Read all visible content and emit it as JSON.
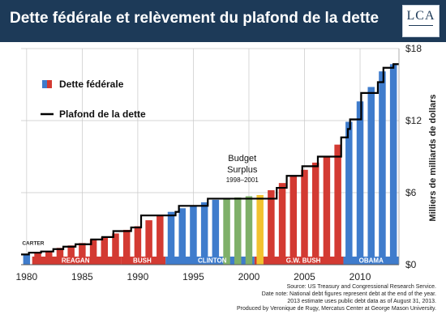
{
  "header": {
    "title": "Dette fédérale et relèvement du plafond de la dette"
  },
  "logo": {
    "text": "LCA",
    "subtitle": ""
  },
  "colors": {
    "title_bg": "#1d3a58",
    "republican": "#d33a32",
    "democrat": "#3f7ccc",
    "surplus_green": "#7fb069",
    "surplus_yellow": "#f2c230",
    "ceiling": "#000000",
    "grid": "#c8c8c8"
  },
  "source_notes": [
    "Source: US Treasury and Congressional Research Service.",
    "Date note: National debt figures represent debt at the end of the year.",
    "2013 estimate uses public debt data as of August 31, 2013.",
    "Produced by Veronique de Rugy, Mercatus Center at George Mason University."
  ],
  "chart_data": {
    "type": "bar",
    "title": "Dette fédérale et relèvement du plafond de la dette",
    "ylabel": "Milliers de milliards de dollars",
    "xlabel": "",
    "ylim": [
      0,
      18
    ],
    "xlim": [
      1979.5,
      2013.5
    ],
    "y_ticks": [
      "$0",
      "$6",
      "$12",
      "$18"
    ],
    "x_ticks": [
      "1980",
      "1985",
      "1990",
      "1995",
      "2000",
      "2005",
      "2010"
    ],
    "y_tick_values": [
      0,
      6,
      12,
      18
    ],
    "x_tick_values": [
      1980,
      1985,
      1990,
      1995,
      2000,
      2005,
      2010
    ],
    "grid": true,
    "legend_position": "top-left",
    "legend": [
      {
        "label": "Dette fédérale",
        "kind": "bar"
      },
      {
        "label": "Plafond de la dette",
        "kind": "line"
      }
    ],
    "years": [
      1980,
      1981,
      1982,
      1983,
      1984,
      1985,
      1986,
      1987,
      1988,
      1989,
      1990,
      1991,
      1992,
      1993,
      1994,
      1995,
      1996,
      1997,
      1998,
      1999,
      2000,
      2001,
      2002,
      2003,
      2004,
      2005,
      2006,
      2007,
      2008,
      2009,
      2010,
      2011,
      2012,
      2013
    ],
    "series": [
      {
        "name": "Dette fédérale",
        "values": [
          0.9,
          1.0,
          1.1,
          1.4,
          1.6,
          1.8,
          2.1,
          2.3,
          2.6,
          2.9,
          3.2,
          3.7,
          4.1,
          4.4,
          4.7,
          4.9,
          5.2,
          5.4,
          5.5,
          5.6,
          5.7,
          5.8,
          6.2,
          6.8,
          7.4,
          7.9,
          8.5,
          9.0,
          10.0,
          11.9,
          13.6,
          14.8,
          16.1,
          16.7
        ],
        "colors": [
          "blue",
          "red",
          "red",
          "red",
          "red",
          "red",
          "red",
          "red",
          "red",
          "red",
          "red",
          "red",
          "red",
          "blue",
          "blue",
          "blue",
          "blue",
          "blue",
          "green",
          "green",
          "green",
          "yellow",
          "red",
          "red",
          "red",
          "red",
          "red",
          "red",
          "red",
          "blue",
          "blue",
          "blue",
          "blue",
          "blue"
        ]
      },
      {
        "name": "Plafond de la dette",
        "points": [
          [
            1979.5,
            0.85
          ],
          [
            1980.2,
            1.0
          ],
          [
            1981.3,
            1.1
          ],
          [
            1982.4,
            1.3
          ],
          [
            1983.3,
            1.5
          ],
          [
            1984.4,
            1.7
          ],
          [
            1985.8,
            2.1
          ],
          [
            1986.8,
            2.3
          ],
          [
            1987.8,
            2.8
          ],
          [
            1989.4,
            3.1
          ],
          [
            1990.3,
            4.1
          ],
          [
            1993.4,
            4.4
          ],
          [
            1993.7,
            4.9
          ],
          [
            1996.3,
            5.5
          ],
          [
            2002.5,
            6.4
          ],
          [
            2003.4,
            7.4
          ],
          [
            2004.8,
            8.2
          ],
          [
            2006.2,
            9.0
          ],
          [
            2008.3,
            10.6
          ],
          [
            2008.9,
            11.3
          ],
          [
            2009.1,
            12.1
          ],
          [
            2010.1,
            14.3
          ],
          [
            2011.6,
            15.2
          ],
          [
            2012.1,
            16.4
          ],
          [
            2013.0,
            16.7
          ],
          [
            2013.5,
            16.7
          ]
        ]
      }
    ],
    "annotations": [
      {
        "text": "CARTER",
        "x": 1979.6,
        "y": 1.65
      },
      {
        "text": "REAGAN",
        "x": 1984.4,
        "y": 0.0
      },
      {
        "text": "BUSH",
        "x": 1990.4,
        "y": 0.0
      },
      {
        "text": "CLINTON",
        "x": 1996.7,
        "y": 0.0
      },
      {
        "text": "G.W. BUSH",
        "x": 2004.9,
        "y": 0.0
      },
      {
        "text": "OBAMA",
        "x": 2011.0,
        "y": 0.0
      }
    ],
    "eras": [
      {
        "start": 1980.5,
        "end": 1988.5,
        "color": "red"
      },
      {
        "start": 1988.5,
        "end": 1992.5,
        "color": "red"
      },
      {
        "start": 1992.5,
        "end": 2000.5,
        "color": "blue"
      },
      {
        "start": 2000.5,
        "end": 2008.5,
        "color": "red"
      },
      {
        "start": 2008.5,
        "end": 2013.5,
        "color": "blue"
      }
    ],
    "budget_surplus": {
      "title": "Budget\nSurplus",
      "title_lines": [
        "Budget",
        "Surplus"
      ],
      "range": "1998–2001"
    }
  }
}
